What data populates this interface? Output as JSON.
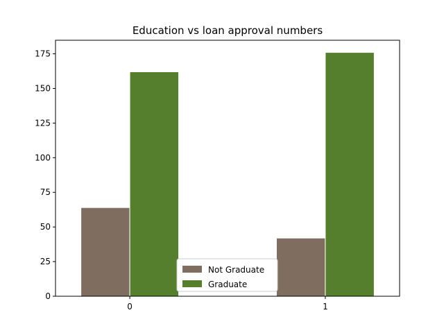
{
  "chart_data": {
    "type": "bar",
    "title": "Education vs loan approval numbers",
    "xlabel": "",
    "ylabel": "",
    "categories": [
      "0",
      "1"
    ],
    "series": [
      {
        "name": "Not Graduate",
        "values": [
          64,
          42
        ],
        "color": "#7f6d5f"
      },
      {
        "name": "Graduate",
        "values": [
          162,
          176
        ],
        "color": "#557f2d"
      }
    ],
    "ylim": [
      0,
      184.8
    ],
    "yticks": [
      0,
      25,
      50,
      75,
      100,
      125,
      150,
      175
    ],
    "grid": false,
    "legend_position": "lower center"
  }
}
